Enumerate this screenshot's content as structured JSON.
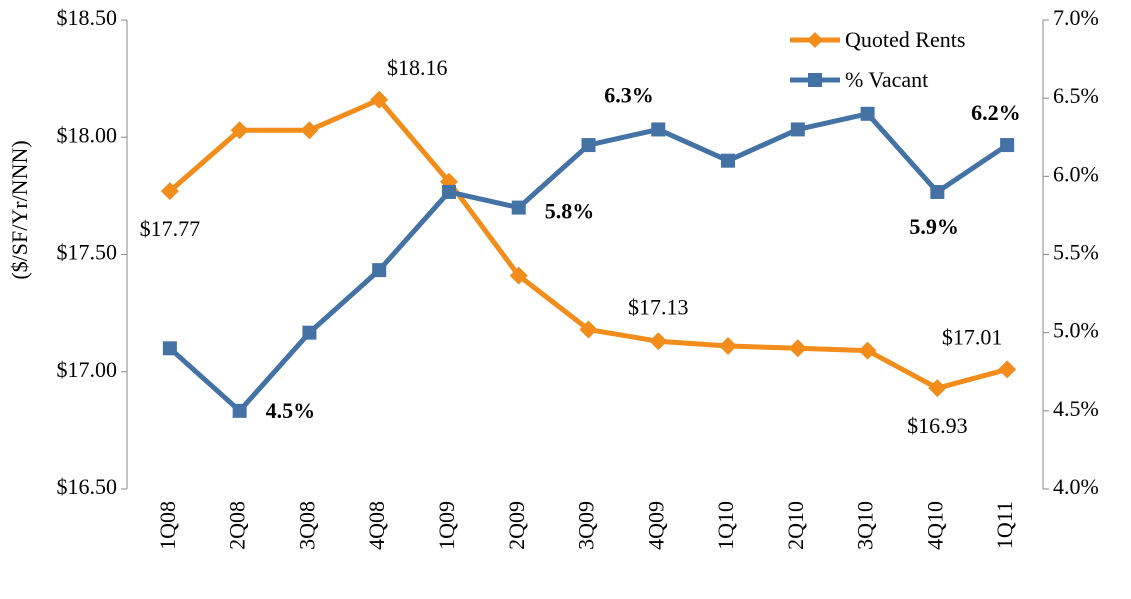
{
  "chart_data": {
    "type": "line",
    "y_label": "($/SF/Yr/NNN)",
    "categories": [
      "1Q08",
      "2Q08",
      "3Q08",
      "4Q08",
      "1Q09",
      "2Q09",
      "3Q09",
      "4Q09",
      "1Q10",
      "2Q10",
      "3Q10",
      "4Q10",
      "1Q11"
    ],
    "series": [
      {
        "name": "Quoted Rents",
        "color": "#f28c1a",
        "marker": "diamond",
        "values": [
          17.77,
          18.03,
          18.03,
          18.16,
          17.81,
          17.41,
          17.18,
          17.13,
          17.11,
          17.1,
          17.09,
          16.93,
          17.01
        ],
        "value_labels": [
          "$17.77",
          null,
          null,
          "$18.16",
          null,
          null,
          null,
          "$17.13",
          null,
          null,
          null,
          "$16.93",
          "$17.01"
        ]
      },
      {
        "name": "% Vacant",
        "color": "#4472a4",
        "marker": "square",
        "axis": "y2",
        "values": [
          4.9,
          4.5,
          5.0,
          5.4,
          5.9,
          5.8,
          6.2,
          6.3,
          6.1,
          6.3,
          6.4,
          5.9,
          6.2
        ],
        "value_labels": [
          null,
          "4.5%",
          null,
          null,
          null,
          "5.8%",
          null,
          "6.3%",
          null,
          null,
          null,
          "5.9%",
          "6.2%"
        ]
      }
    ],
    "ylim": [
      16.5,
      18.5
    ],
    "yticks": [
      {
        "value": 16.5,
        "label": "$16.50"
      },
      {
        "value": 17,
        "label": "$17.00"
      },
      {
        "value": 17.5,
        "label": "$17.50"
      },
      {
        "value": 18,
        "label": "$18.00"
      },
      {
        "value": 18.5,
        "label": "$18.50"
      }
    ],
    "y2lim": [
      4.0,
      7.0
    ],
    "y2ticks": [
      {
        "value": 4,
        "label": "4.0%"
      },
      {
        "value": 4.5,
        "label": "4.5%"
      },
      {
        "value": 5,
        "label": "5.0%"
      },
      {
        "value": 5.5,
        "label": "5.5%"
      },
      {
        "value": 6,
        "label": "6.0%"
      },
      {
        "value": 6.5,
        "label": "6.5%"
      },
      {
        "value": 7,
        "label": "7.0%"
      }
    ],
    "legend": "top-right"
  }
}
